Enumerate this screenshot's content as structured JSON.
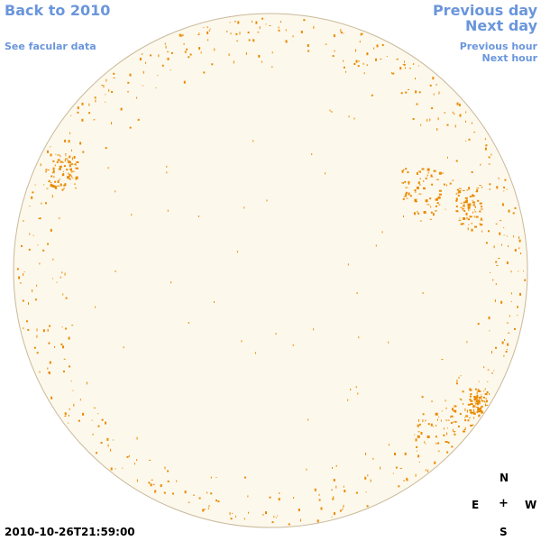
{
  "nav": {
    "back_label": "Back to 2010",
    "facular_label": "See facular data",
    "prev_day_label": "Previous day",
    "next_day_label": "Next day",
    "prev_hour_label": "Previous hour",
    "next_hour_label": "Next hour"
  },
  "compass": {
    "north": "N",
    "east": "E",
    "center": "+",
    "west": "W",
    "south": "S"
  },
  "timestamp": "2010-10-26T21:59:00",
  "colors": {
    "link": "#6a96dc",
    "disk_fill": "#fdf8ec",
    "disk_stroke": "#c9b99a",
    "facula": "#e98a00"
  }
}
